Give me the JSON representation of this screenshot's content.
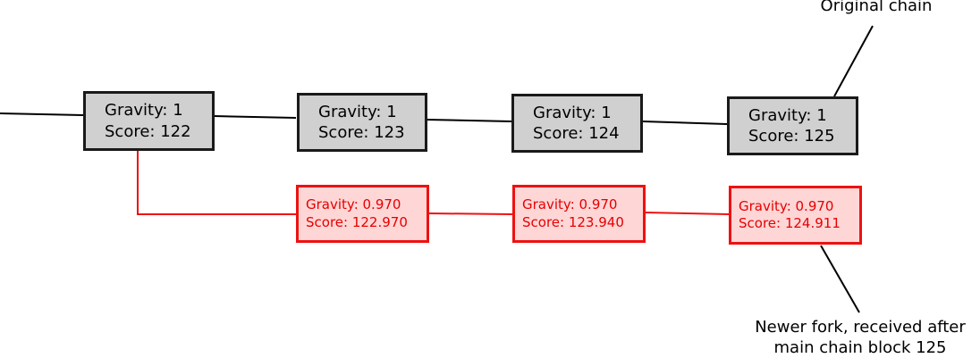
{
  "colors": {
    "main_fill": "#d0d0d0",
    "main_border": "#1a1a1a",
    "fork_fill": "#ffd6d6",
    "fork_border": "#ee1111",
    "fork_text": "#e60000"
  },
  "main_chain": [
    {
      "gravity": "Gravity: 1",
      "score": "Score: 122"
    },
    {
      "gravity": "Gravity: 1",
      "score": "Score: 123"
    },
    {
      "gravity": "Gravity: 1",
      "score": "Score: 124"
    },
    {
      "gravity": "Gravity: 1",
      "score": "Score: 125"
    }
  ],
  "fork_chain": [
    {
      "gravity": "Gravity: 0.970",
      "score": "Score: 122.970"
    },
    {
      "gravity": "Gravity: 0.970",
      "score": "Score: 123.940"
    },
    {
      "gravity": "Gravity: 0.970",
      "score": "Score: 124.911"
    }
  ],
  "annotations": {
    "original_chain": "Original chain",
    "newer_fork_line1": "Newer fork, received after",
    "newer_fork_line2": "main chain block 125"
  }
}
